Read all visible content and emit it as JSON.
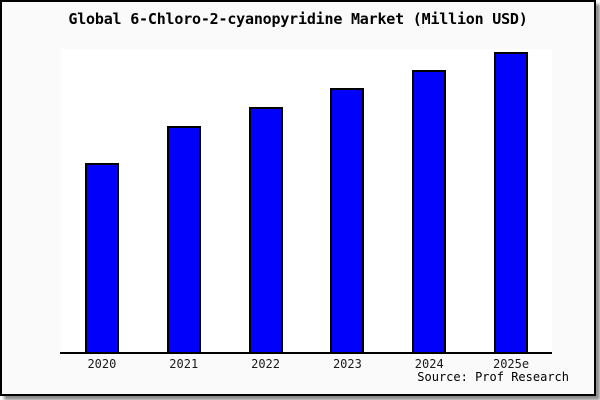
{
  "window": {
    "background_color": "#fafafa",
    "frame_border_color": "#000000",
    "plot_background_color": "#ffffff"
  },
  "chart_data": {
    "type": "bar",
    "title": "Global 6-Chloro-2-cyanopyridine Market (Million USD)",
    "categories": [
      "2020",
      "2021",
      "2022",
      "2023",
      "2024",
      "2025e"
    ],
    "values": [
      63.0,
      75.5,
      81.8,
      88.0,
      94.0,
      100.0
    ],
    "value_basis": "relative bar height, tallest bar (2025e) = 100; y-axis shows no tick labels or scale",
    "xlabel": "",
    "ylabel": "",
    "ylim": [
      0,
      100
    ],
    "grid": false,
    "legend": false,
    "bar_color": "#0000fb",
    "bar_border_color": "#000000",
    "axis_color": "#000000"
  },
  "footer": {
    "source_label": "Source: Prof Research"
  }
}
